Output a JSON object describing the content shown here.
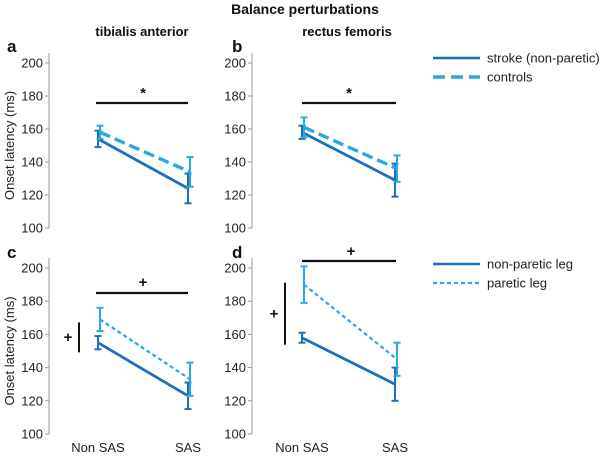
{
  "figure_title": "Balance perturbations",
  "colors": {
    "primary": "#1f6fbf",
    "secondary": "#2aa8e0",
    "text": "#111111"
  },
  "legend_top": [
    {
      "label": "stroke (non-paretic)",
      "style": "solid"
    },
    {
      "label": "controls",
      "style": "dashed"
    }
  ],
  "legend_bottom": [
    {
      "label": "non-paretic leg",
      "style": "solid"
    },
    {
      "label": "paretic leg",
      "style": "dotted"
    }
  ],
  "chart_data": [
    {
      "panel": "a",
      "type": "line",
      "title": "tibialis anterior",
      "categories": [
        "Non SAS",
        "SAS"
      ],
      "ylabel": "Onset latency (ms)",
      "ylim": [
        100,
        200
      ],
      "yticks": [
        100,
        120,
        140,
        160,
        180,
        200
      ],
      "series": [
        {
          "name": "stroke (non-paretic)",
          "values": [
            154,
            124
          ],
          "errors": [
            5,
            9
          ]
        },
        {
          "name": "controls",
          "values": [
            158,
            134
          ],
          "errors": [
            4,
            9
          ]
        }
      ],
      "significance": [
        {
          "symbol": "*",
          "type": "horizontal"
        }
      ]
    },
    {
      "panel": "b",
      "type": "line",
      "title": "rectus femoris",
      "categories": [
        "Non SAS",
        "SAS"
      ],
      "ylabel": "",
      "ylim": [
        100,
        200
      ],
      "yticks": [
        100,
        120,
        140,
        160,
        180,
        200
      ],
      "series": [
        {
          "name": "stroke (non-paretic)",
          "values": [
            158,
            129
          ],
          "errors": [
            4,
            10
          ]
        },
        {
          "name": "controls",
          "values": [
            161,
            136
          ],
          "errors": [
            6,
            8
          ]
        }
      ],
      "significance": [
        {
          "symbol": "*",
          "type": "horizontal"
        }
      ]
    },
    {
      "panel": "c",
      "type": "line",
      "title": "",
      "categories": [
        "Non SAS",
        "SAS"
      ],
      "ylabel": "Onset latency (ms)",
      "ylim": [
        100,
        200
      ],
      "yticks": [
        100,
        120,
        140,
        160,
        180,
        200
      ],
      "series": [
        {
          "name": "non-paretic leg",
          "values": [
            155,
            123
          ],
          "errors": [
            4,
            8
          ]
        },
        {
          "name": "paretic leg",
          "values": [
            169,
            133
          ],
          "errors": [
            7,
            10
          ]
        }
      ],
      "significance": [
        {
          "symbol": "+",
          "type": "horizontal"
        },
        {
          "symbol": "+",
          "type": "vertical",
          "range": [
            151,
            166
          ]
        }
      ]
    },
    {
      "panel": "d",
      "type": "line",
      "title": "",
      "categories": [
        "Non SAS",
        "SAS"
      ],
      "ylabel": "",
      "ylim": [
        100,
        200
      ],
      "yticks": [
        100,
        120,
        140,
        160,
        180,
        200
      ],
      "series": [
        {
          "name": "non-paretic leg",
          "values": [
            158,
            130
          ],
          "errors": [
            3,
            10
          ]
        },
        {
          "name": "paretic leg",
          "values": [
            190,
            145
          ],
          "errors": [
            11,
            10
          ]
        }
      ],
      "significance": [
        {
          "symbol": "+",
          "type": "horizontal"
        },
        {
          "symbol": "+",
          "type": "vertical",
          "range": [
            158,
            187
          ]
        }
      ]
    }
  ]
}
